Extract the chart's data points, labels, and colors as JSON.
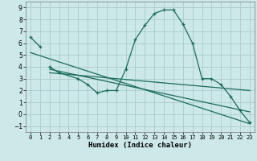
{
  "title": "",
  "xlabel": "Humidex (Indice chaleur)",
  "bg_color": "#cce8e8",
  "grid_color": "#aacccc",
  "line_color": "#1a6b5a",
  "xlim": [
    -0.5,
    23.5
  ],
  "ylim": [
    -1.5,
    9.5
  ],
  "xticks": [
    0,
    1,
    2,
    3,
    4,
    5,
    6,
    7,
    8,
    9,
    10,
    11,
    12,
    13,
    14,
    15,
    16,
    17,
    18,
    19,
    20,
    21,
    22,
    23
  ],
  "yticks": [
    -1,
    0,
    1,
    2,
    3,
    4,
    5,
    6,
    7,
    8,
    9
  ],
  "series_marked": [
    {
      "x": [
        0,
        1
      ],
      "y": [
        6.5,
        5.7
      ]
    },
    {
      "x": [
        2,
        3,
        5,
        6,
        7,
        8,
        9,
        10,
        11,
        12,
        13,
        14,
        15,
        16,
        17,
        18,
        19,
        20,
        21,
        22,
        23
      ],
      "y": [
        4.0,
        3.5,
        3.0,
        2.5,
        1.8,
        2.0,
        2.0,
        3.8,
        6.3,
        7.5,
        8.5,
        8.8,
        8.8,
        7.6,
        6.0,
        3.0,
        3.0,
        2.5,
        1.5,
        0.3,
        -0.7
      ]
    }
  ],
  "series_lines": [
    {
      "x": [
        0,
        23
      ],
      "y": [
        5.2,
        -0.8
      ]
    },
    {
      "x": [
        2,
        23
      ],
      "y": [
        3.8,
        0.2
      ]
    },
    {
      "x": [
        2,
        23
      ],
      "y": [
        3.5,
        2.0
      ]
    }
  ]
}
